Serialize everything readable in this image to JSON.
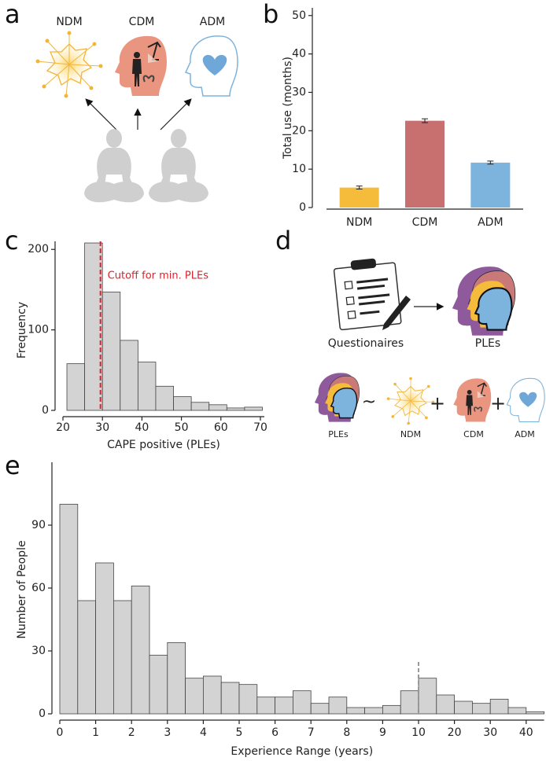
{
  "panel_labels": [
    "a",
    "b",
    "c",
    "d",
    "e"
  ],
  "panel_a": {
    "labels": [
      "NDM",
      "CDM",
      "ADM"
    ]
  },
  "panel_d": {
    "questionnaire_label": "Questionaires",
    "result_label": "PLEs",
    "equation": {
      "lhs": "PLEs",
      "tilde": "~",
      "plus": "+",
      "terms": [
        "NDM",
        "CDM",
        "ADM"
      ]
    }
  },
  "chart_data": [
    {
      "type": "bar",
      "categories": [
        "NDM",
        "CDM",
        "ADM"
      ],
      "values": [
        5.2,
        22.6,
        11.7
      ],
      "errors": [
        0.4,
        0.5,
        0.4
      ],
      "colors": [
        "#f5bb3b",
        "#c86f70",
        "#7db4dd"
      ],
      "ylim": [
        0,
        52
      ],
      "yticks": [
        0,
        10,
        20,
        30,
        40,
        50
      ],
      "y_label": "Total use (months)"
    },
    {
      "type": "histogram",
      "bins": [
        21,
        25.5,
        30,
        34.5,
        39,
        43.5,
        48,
        52.5,
        57,
        61.5,
        66,
        70.5
      ],
      "counts": [
        58,
        208,
        147,
        87,
        60,
        30,
        17,
        10,
        7,
        3,
        4
      ],
      "color": "#d3d3d3",
      "xlim": [
        20,
        71
      ],
      "xticks": [
        20,
        30,
        40,
        50,
        60,
        70
      ],
      "ylim": [
        0,
        210
      ],
      "yticks": [
        0,
        100,
        200
      ],
      "x_label": "CAPE positive (PLEs)",
      "y_label": "Frequency",
      "cutoff": {
        "value": 29.5,
        "label": "Cutoff for min. PLEs",
        "color": "#e0202a"
      }
    },
    {
      "type": "bar",
      "categories": [
        null,
        null,
        null,
        null,
        null,
        null,
        null,
        null,
        null,
        null,
        null,
        null,
        null,
        null,
        null,
        null,
        null,
        null,
        null,
        null,
        null,
        null,
        null,
        null,
        null,
        null,
        null
      ],
      "values": [
        100,
        54,
        72,
        54,
        61,
        28,
        34,
        17,
        18,
        15,
        14,
        8,
        8,
        11,
        5,
        8,
        3,
        3,
        4,
        11,
        17,
        9,
        6,
        5,
        7,
        3,
        1
      ],
      "color": "#d3d3d3",
      "ylim": [
        0,
        120
      ],
      "yticks": [
        0,
        30,
        60,
        90
      ],
      "xticks": [
        {
          "value": 0,
          "label": "0"
        },
        {
          "value": 2,
          "label": "1"
        },
        {
          "value": 4,
          "label": "2"
        },
        {
          "value": 6,
          "label": "3"
        },
        {
          "value": 8,
          "label": "4"
        },
        {
          "value": 10,
          "label": "5"
        },
        {
          "value": 12,
          "label": "6"
        },
        {
          "value": 14,
          "label": "7"
        },
        {
          "value": 16,
          "label": "8"
        },
        {
          "value": 18,
          "label": "9"
        },
        {
          "value": 20,
          "label": "10"
        },
        {
          "value": 22,
          "label": "20"
        },
        {
          "value": 24,
          "label": "30"
        },
        {
          "value": 26,
          "label": "40"
        }
      ],
      "x_label": "Experience Range (years)",
      "y_label": "Number of People",
      "vline": {
        "value": 20,
        "color": "#999999"
      }
    }
  ]
}
